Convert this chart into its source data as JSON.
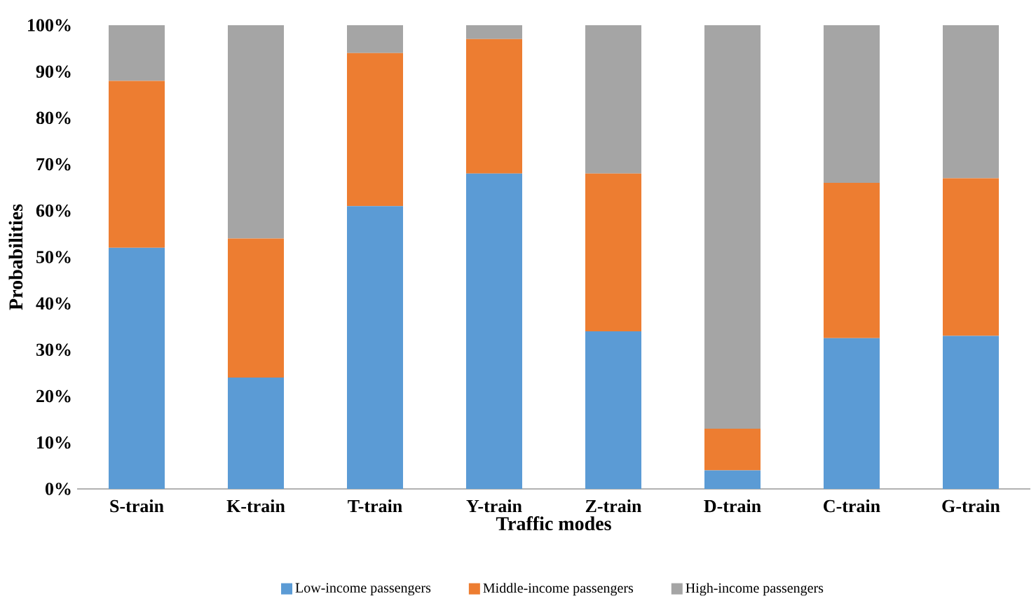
{
  "chart_data": {
    "type": "bar",
    "stacked": true,
    "xlabel": "Traffic modes",
    "ylabel": "Probabilities",
    "categories": [
      "S-train",
      "K-train",
      "T-train",
      "Y-train",
      "Z-train",
      "D-train",
      "C-train",
      "G-train"
    ],
    "series": [
      {
        "name": "Low-income passengers",
        "color": "#5b9bd5",
        "values": [
          52,
          24,
          61,
          68,
          34,
          4,
          32.5,
          33
        ]
      },
      {
        "name": "Middle-income passengers",
        "color": "#ed7d31",
        "values": [
          36,
          30,
          33,
          29,
          34,
          9,
          33.5,
          34
        ]
      },
      {
        "name": "High-income passengers",
        "color": "#a5a5a5",
        "values": [
          12,
          46,
          6,
          3,
          32,
          87,
          34,
          33
        ]
      }
    ],
    "ylim": [
      0,
      100
    ],
    "yticks": [
      {
        "value": 0,
        "label": "0%"
      },
      {
        "value": 10,
        "label": "10%"
      },
      {
        "value": 20,
        "label": "20%"
      },
      {
        "value": 30,
        "label": "30%"
      },
      {
        "value": 40,
        "label": "40%"
      },
      {
        "value": 50,
        "label": "50%"
      },
      {
        "value": 60,
        "label": "60%"
      },
      {
        "value": 70,
        "label": "70%"
      },
      {
        "value": 80,
        "label": "80%"
      },
      {
        "value": 90,
        "label": "90%"
      },
      {
        "value": 100,
        "label": "100%"
      }
    ],
    "legend": "bottom"
  }
}
